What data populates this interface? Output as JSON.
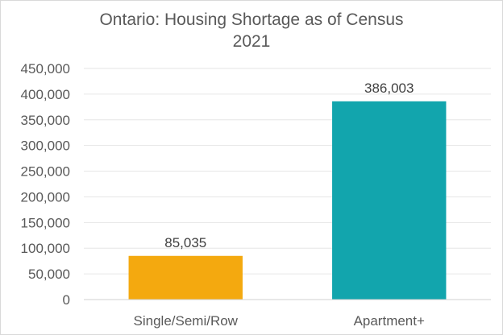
{
  "chart_data": {
    "type": "bar",
    "title_line1": "Ontario: Housing Shortage as of Census",
    "title_line2": "2021",
    "categories": [
      "Single/Semi/Row",
      "Apartment+"
    ],
    "values": [
      85035,
      386003
    ],
    "value_labels": [
      "85,035",
      "386,003"
    ],
    "colors": [
      "#f4a90f",
      "#12a5ad"
    ],
    "ylim": [
      0,
      450000
    ],
    "yticks": [
      0,
      50000,
      100000,
      150000,
      200000,
      250000,
      300000,
      350000,
      400000,
      450000
    ],
    "ytick_labels": [
      "0",
      "50,000",
      "100,000",
      "150,000",
      "200,000",
      "250,000",
      "300,000",
      "350,000",
      "400,000",
      "450,000"
    ],
    "grid": true,
    "legend": false,
    "xlabel": "",
    "ylabel": ""
  }
}
